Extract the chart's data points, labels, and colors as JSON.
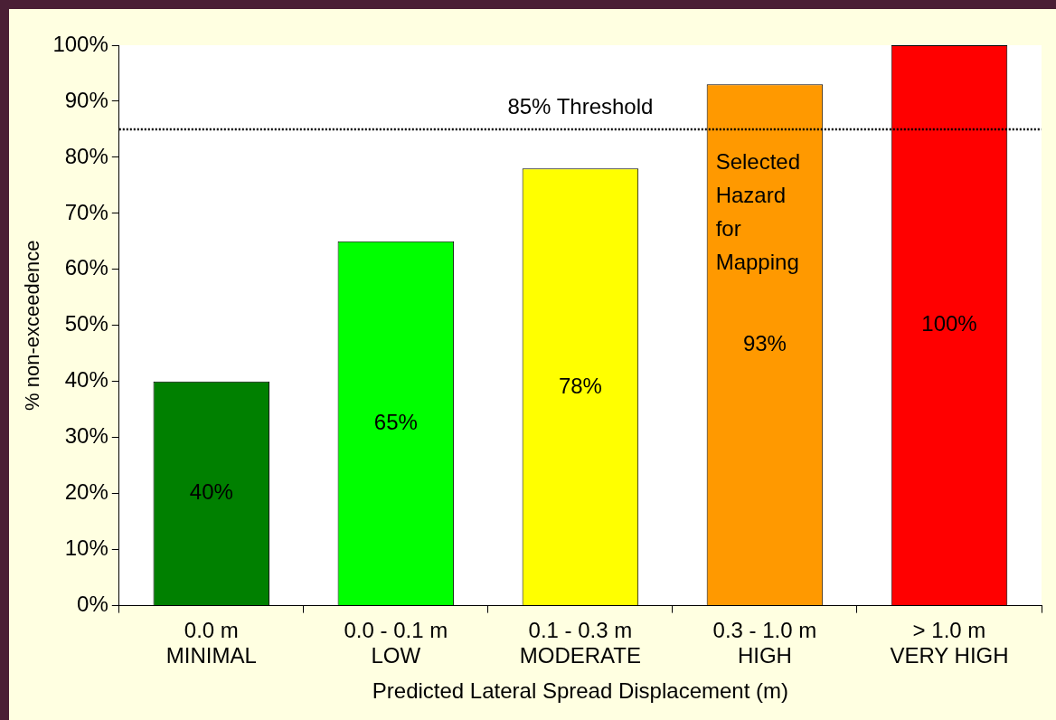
{
  "chart_data": {
    "type": "bar",
    "xlabel": "Predicted Lateral Spread Displacement (m)",
    "ylabel": "% non-exceedence",
    "categories": [
      "0.0 m\nMINIMAL",
      "0.0 - 0.1 m\nLOW",
      "0.1 - 0.3 m\nMODERATE",
      "0.3 - 1.0 m\nHIGH",
      "> 1.0 m\nVERY HIGH"
    ],
    "values": [
      40,
      65,
      78,
      93,
      100
    ],
    "colors": [
      "#008000",
      "#00ff00",
      "#ffff00",
      "#ff9900",
      "#ff0000"
    ],
    "value_labels": [
      "40%",
      "65%",
      "78%",
      "93%",
      "100%"
    ],
    "ylim": [
      0,
      100
    ],
    "yticks": [
      {
        "value": 0,
        "label": "0%"
      },
      {
        "value": 10,
        "label": "10%"
      },
      {
        "value": 20,
        "label": "20%"
      },
      {
        "value": 30,
        "label": "30%"
      },
      {
        "value": 40,
        "label": "40%"
      },
      {
        "value": 50,
        "label": "50%"
      },
      {
        "value": 60,
        "label": "60%"
      },
      {
        "value": 70,
        "label": "70%"
      },
      {
        "value": 80,
        "label": "80%"
      },
      {
        "value": 90,
        "label": "90%"
      },
      {
        "value": 100,
        "label": "100%"
      }
    ],
    "ref_lines": [
      {
        "axis": "y",
        "value": 85,
        "label": "85% Threshold",
        "line_style": "dotted",
        "color": "#000000"
      }
    ],
    "annotations": [
      "Selected Hazard for Mapping"
    ],
    "grid": false,
    "legend": false
  }
}
